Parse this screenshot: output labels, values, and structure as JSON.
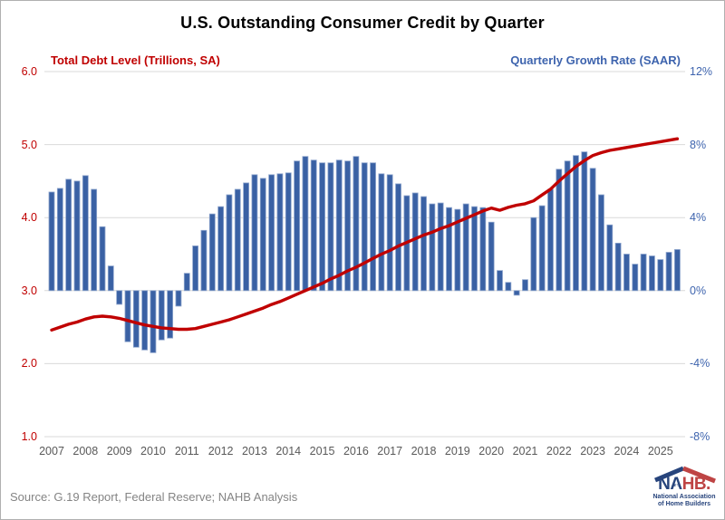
{
  "title": "U.S. Outstanding Consumer Credit by Quarter",
  "left_axis": {
    "title": "Total Debt Level (Trillions, SA)",
    "ticks": [
      "6.0",
      "5.0",
      "4.0",
      "3.0",
      "2.0",
      "1.0"
    ],
    "color": "#C00000"
  },
  "right_axis": {
    "title": "Quarterly Growth Rate (SAAR)",
    "ticks": [
      "12%",
      "8%",
      "4%",
      "0%",
      "-4%",
      "-8%"
    ],
    "color": "#3E64AE"
  },
  "x_axis": {
    "years": [
      "2007",
      "2008",
      "2009",
      "2010",
      "2011",
      "2012",
      "2013",
      "2014",
      "2015",
      "2016",
      "2017",
      "2018",
      "2019",
      "2020",
      "2021",
      "2022",
      "2023",
      "2024",
      "2025"
    ],
    "color": "#595959"
  },
  "source": "Source: G.19 Report, Federal Reserve; NAHB Analysis",
  "logo": {
    "word_blue": "NA",
    "word_red": "HB.",
    "star": "★",
    "sub_line1": "National Association",
    "sub_line2": "of Home Builders"
  },
  "colors": {
    "bar_fill": "#3A61A4",
    "bar_stroke": "#8EA5CD",
    "line": "#C00000",
    "gridline": "#D9D9D9",
    "title_text": "#000000",
    "year_text": "#595959",
    "source_text": "#848484",
    "logo_blue": "#27447C",
    "logo_red": "#BE4444"
  },
  "chart_data": {
    "type": "bar",
    "combo": "bar + line, dual axis",
    "title": "U.S. Outstanding Consumer Credit by Quarter",
    "frequency": "quarterly",
    "x_start": "2007 Q1",
    "x_end": "2025 Q3",
    "x_year_labels": [
      "2007",
      "2008",
      "2009",
      "2010",
      "2011",
      "2012",
      "2013",
      "2014",
      "2015",
      "2016",
      "2017",
      "2018",
      "2019",
      "2020",
      "2021",
      "2022",
      "2023",
      "2024",
      "2025"
    ],
    "left_ylabel": "Total Debt Level (Trillions, SA)",
    "right_ylabel": "Quarterly Growth Rate (SAAR)",
    "left_ylim": [
      1.0,
      6.0
    ],
    "right_ylim": [
      -8,
      12
    ],
    "grid": true,
    "legend_position": "top (axis titles as colored labels)",
    "series": [
      {
        "name": "Quarterly Growth Rate (SAAR)",
        "type": "bar",
        "axis": "right",
        "unit": "%",
        "values": [
          5.4,
          5.6,
          6.1,
          6.0,
          6.3,
          5.55,
          3.5,
          1.35,
          -0.75,
          -2.8,
          -3.1,
          -3.25,
          -3.4,
          -2.7,
          -2.6,
          -0.85,
          0.95,
          2.45,
          3.3,
          4.2,
          4.6,
          5.25,
          5.55,
          5.9,
          6.35,
          6.15,
          6.35,
          6.4,
          6.45,
          7.1,
          7.35,
          7.15,
          7.0,
          7.0,
          7.15,
          7.1,
          7.35,
          7.0,
          7.0,
          6.4,
          6.35,
          5.85,
          5.2,
          5.35,
          5.15,
          4.75,
          4.8,
          4.55,
          4.45,
          4.75,
          4.6,
          4.55,
          3.75,
          1.1,
          0.45,
          -0.25,
          0.6,
          4.0,
          4.65,
          5.55,
          6.65,
          7.1,
          7.4,
          7.6,
          6.7,
          5.25,
          3.6,
          2.6,
          2.0,
          1.45,
          2.0,
          1.9,
          1.7,
          2.1,
          2.25
        ]
      },
      {
        "name": "Total Debt Level (Trillions, SA)",
        "type": "line",
        "axis": "left",
        "unit": "trillions USD",
        "values": [
          2.46,
          2.5,
          2.54,
          2.57,
          2.61,
          2.64,
          2.65,
          2.64,
          2.62,
          2.59,
          2.56,
          2.53,
          2.51,
          2.49,
          2.48,
          2.47,
          2.47,
          2.48,
          2.51,
          2.54,
          2.57,
          2.6,
          2.64,
          2.68,
          2.72,
          2.76,
          2.81,
          2.85,
          2.9,
          2.95,
          3.0,
          3.05,
          3.1,
          3.16,
          3.21,
          3.27,
          3.32,
          3.38,
          3.44,
          3.5,
          3.55,
          3.61,
          3.66,
          3.71,
          3.76,
          3.8,
          3.85,
          3.89,
          3.94,
          3.99,
          4.04,
          4.09,
          4.13,
          4.1,
          4.14,
          4.17,
          4.19,
          4.23,
          4.31,
          4.39,
          4.5,
          4.6,
          4.7,
          4.78,
          4.85,
          4.89,
          4.92,
          4.94,
          4.96,
          4.98,
          5.0,
          5.02,
          5.04,
          5.06,
          5.08
        ]
      }
    ]
  }
}
